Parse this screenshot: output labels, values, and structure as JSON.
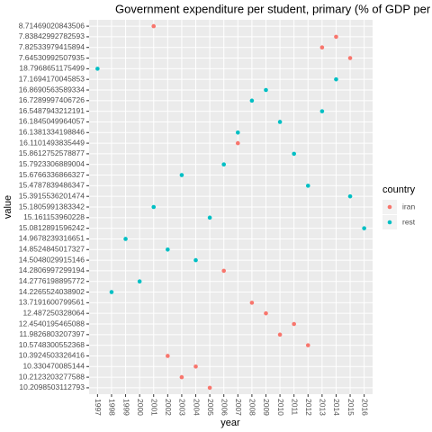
{
  "chart_data": {
    "type": "scatter",
    "title": "Government expenditure per student, primary (% of GDP per cap",
    "xlabel": "year",
    "ylabel": "value",
    "legend_title": "country",
    "legend": "right",
    "grid": true,
    "xcategories": [
      "1997",
      "1998",
      "1999",
      "2000",
      "2001",
      "2002",
      "2003",
      "2004",
      "2005",
      "2006",
      "2007",
      "2008",
      "2009",
      "2010",
      "2011",
      "2012",
      "2013",
      "2014",
      "2015",
      "2016"
    ],
    "ycategories": [
      8.71469020843506,
      7.83842992782593,
      7.82533979415894,
      7.64530992507935,
      18.7968651175499,
      17.1694170045853,
      16.8690563589334,
      16.7289997406726,
      16.5487943212191,
      16.1845049964057,
      16.1381334198846,
      16.1101493835449,
      15.8612752578877,
      15.7923306889004,
      15.6766336866327,
      15.4787839486347,
      15.3915536201474,
      15.1805991383342,
      15.161153960228,
      15.0812891596242,
      14.9678239316651,
      14.8524845017327,
      14.5048029915146,
      14.2806997299194,
      14.2776198895772,
      14.2265524038902,
      13.7191600799561,
      12.487250328064,
      12.4540195465088,
      11.9826803207397,
      10.5748300552368,
      10.3924503326416,
      10.330470085144,
      10.2123203277588,
      10.2098503112793
    ],
    "series": [
      {
        "name": "iran",
        "color": "#F8766D",
        "x": [
          "2001",
          "2014",
          "2013",
          "2015",
          "2007",
          "2006",
          "2008",
          "2009",
          "2011",
          "2010",
          "2012",
          "2002",
          "2004",
          "2003",
          "2005"
        ],
        "values": [
          8.71469020843506,
          7.83842992782593,
          7.82533979415894,
          7.64530992507935,
          16.1101493835449,
          14.2806997299194,
          13.7191600799561,
          12.487250328064,
          12.4540195465088,
          11.9826803207397,
          10.5748300552368,
          10.3924503326416,
          10.330470085144,
          10.2123203277588,
          10.2098503112793
        ]
      },
      {
        "name": "rest",
        "color": "#00BFC4",
        "x": [
          "1997",
          "2014",
          "2009",
          "2008",
          "2013",
          "2010",
          "2007",
          "2011",
          "2006",
          "2003",
          "2012",
          "2015",
          "2001",
          "2005",
          "2016",
          "1999",
          "2002",
          "2004",
          "2000",
          "1998"
        ],
        "values": [
          18.7968651175499,
          17.1694170045853,
          16.8690563589334,
          16.7289997406726,
          16.5487943212191,
          16.1845049964057,
          16.1381334198846,
          15.8612752578877,
          15.7923306889004,
          15.6766336866327,
          15.4787839486347,
          15.3915536201474,
          15.1805991383342,
          15.161153960228,
          15.0812891596242,
          14.9678239316651,
          14.8524845017327,
          14.5048029915146,
          14.2776198895772,
          14.2265524038902
        ]
      }
    ]
  }
}
